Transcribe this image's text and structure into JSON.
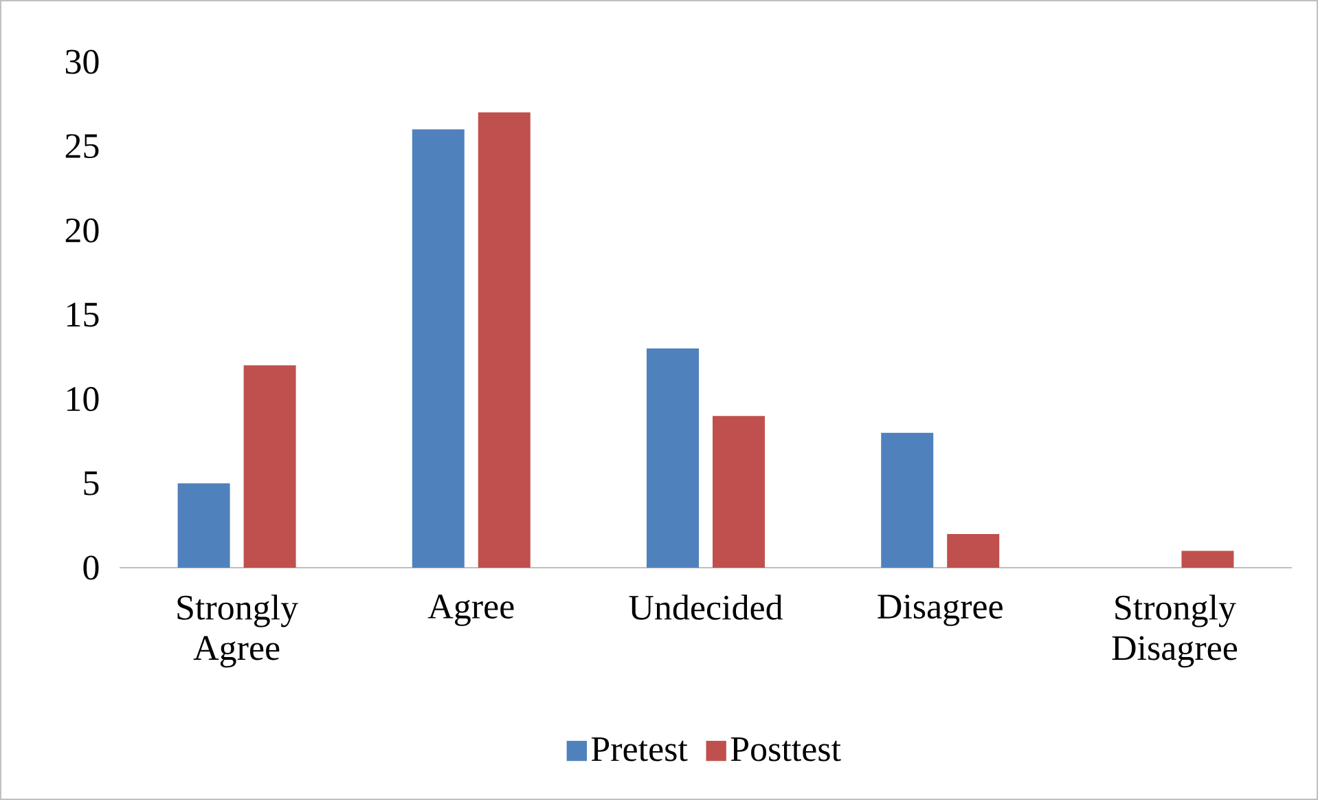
{
  "chart_data": {
    "type": "bar",
    "categories": [
      "Strongly Agree",
      "Agree",
      "Undecided",
      "Disagree",
      "Strongly Disagree"
    ],
    "series": [
      {
        "name": "Pretest",
        "color": "#4f81bd",
        "values": [
          5,
          26,
          13,
          8,
          0
        ]
      },
      {
        "name": "Posttest",
        "color": "#c0504d",
        "values": [
          12,
          27,
          9,
          2,
          1
        ]
      }
    ],
    "ylim": [
      0,
      30
    ],
    "yticks": [
      0,
      5,
      10,
      15,
      20,
      25,
      30
    ],
    "legend": "bottom"
  }
}
